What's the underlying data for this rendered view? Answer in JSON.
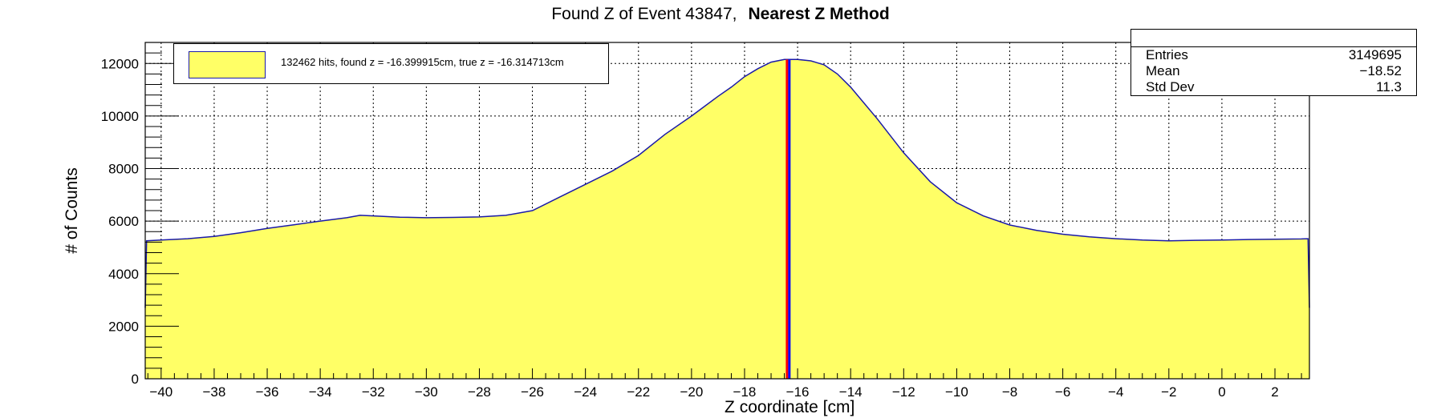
{
  "title": {
    "main": "Found Z of Event 43847,",
    "bold": "Nearest Z Method"
  },
  "stats": {
    "rows": [
      {
        "label": "Entries",
        "value": "3149695"
      },
      {
        "label": "Mean",
        "value": "−18.52"
      },
      {
        "label": "Std Dev",
        "value": "11.3"
      }
    ]
  },
  "legend": {
    "label": "132462 hits, found z = -16.399915cm, true z = -16.314713cm"
  },
  "colors": {
    "fill": "#ffff66",
    "outline": "#1a1aa8",
    "found_line": "#ff0000",
    "true_line": "#0000ff",
    "grid": "#000000"
  },
  "chart_data": {
    "type": "area",
    "title": "Found Z of Event 43847,   Nearest Z Method",
    "xlabel": "Z coordinate [cm]",
    "ylabel": "# of Counts",
    "xlim": [
      -40.6,
      3.3
    ],
    "ylim": [
      0,
      12800
    ],
    "grid": true,
    "legend_position": "top-left",
    "x_ticks": [
      -40,
      -38,
      -36,
      -34,
      -32,
      -30,
      -28,
      -26,
      -24,
      -22,
      -20,
      -18,
      -16,
      -14,
      -12,
      -10,
      -8,
      -6,
      -4,
      -2,
      0,
      2
    ],
    "y_ticks": [
      0,
      2000,
      4000,
      6000,
      8000,
      10000,
      12000
    ],
    "x_tick_labels": [
      "−40",
      "−38",
      "−36",
      "−34",
      "−32",
      "−30",
      "−28",
      "−26",
      "−24",
      "−22",
      "−20",
      "−18",
      "−16",
      "−14",
      "−12",
      "−10",
      "−8",
      "−6",
      "−4",
      "−2",
      "0",
      "2"
    ],
    "y_tick_labels": [
      "0",
      "2000",
      "4000",
      "6000",
      "8000",
      "10000",
      "12000"
    ],
    "series": [
      {
        "x": [
          -40.6,
          -40.55,
          -40,
          -39,
          -38,
          -37,
          -36,
          -35,
          -34,
          -33,
          -32.5,
          -32,
          -31,
          -30,
          -29,
          -28,
          -27,
          -26,
          -25,
          -24,
          -23,
          -22,
          -21,
          -20,
          -19,
          -18.5,
          -18,
          -17.5,
          -17,
          -16.5,
          -16,
          -15.5,
          -15,
          -14.5,
          -14,
          -13,
          -12,
          -11,
          -10,
          -9,
          -8,
          -7,
          -6,
          -5,
          -4,
          -3,
          -2,
          -1,
          0,
          1,
          2,
          3,
          3.25,
          3.3
        ],
        "y": [
          2700,
          5250,
          5280,
          5330,
          5420,
          5560,
          5720,
          5860,
          6000,
          6130,
          6220,
          6200,
          6150,
          6130,
          6140,
          6160,
          6220,
          6400,
          6900,
          7400,
          7900,
          8500,
          9300,
          10000,
          10750,
          11100,
          11500,
          11800,
          12050,
          12150,
          12150,
          12100,
          11950,
          11600,
          11100,
          9900,
          8600,
          7500,
          6700,
          6200,
          5850,
          5650,
          5500,
          5400,
          5330,
          5280,
          5250,
          5270,
          5280,
          5300,
          5310,
          5320,
          5330,
          2700
        ]
      }
    ],
    "vertical_lines": [
      {
        "x": -16.4,
        "label": "found z"
      },
      {
        "x": -16.31,
        "label": "true z"
      }
    ]
  }
}
